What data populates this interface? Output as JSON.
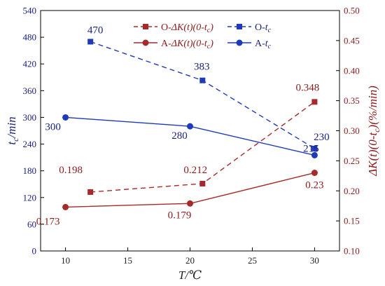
{
  "chart_data": {
    "type": "line",
    "xlabel": "T/℃",
    "ylabel_left": "t_c/min",
    "ylabel_right": "ΔK(t)(0-t_c)(%/min)",
    "xlim": [
      8,
      32
    ],
    "x_ticks": [
      "10",
      "15",
      "20",
      "25",
      "30"
    ],
    "ylim_left": [
      0,
      540
    ],
    "y_ticks_left": [
      "0",
      "60",
      "120",
      "180",
      "240",
      "300",
      "360",
      "420",
      "480",
      "540"
    ],
    "ylim_right": [
      0.1,
      0.5
    ],
    "y_ticks_right": [
      "0.10",
      "0.15",
      "0.20",
      "0.25",
      "0.30",
      "0.35",
      "0.40",
      "0.45",
      "0.50"
    ],
    "legend_placement": "top-right",
    "legend": [
      {
        "text": "O-ΔK(t)(0-t_c)",
        "series": "O-dK"
      },
      {
        "text": "O-t_c",
        "series": "O-tc"
      },
      {
        "text": "A-ΔK(t)(0-t_c)",
        "series": "A-dK"
      },
      {
        "text": "A-t_c",
        "series": "A-tc"
      }
    ],
    "series": [
      {
        "key": "O-dK",
        "axis": "right",
        "color": "#a52a2a",
        "dashed": true,
        "marker": "square",
        "x": [
          12,
          21,
          30
        ],
        "values": [
          0.198,
          0.212,
          0.348
        ],
        "labels": [
          "0.198",
          "0.212",
          "0.348"
        ]
      },
      {
        "key": "O-tc",
        "axis": "left",
        "color": "#1e3ab8",
        "dashed": true,
        "marker": "square",
        "x": [
          12,
          21,
          30
        ],
        "values": [
          470,
          383,
          230
        ],
        "labels": [
          "470",
          "383",
          "230"
        ]
      },
      {
        "key": "A-dK",
        "axis": "right",
        "color": "#a52a2a",
        "dashed": false,
        "marker": "circle",
        "x": [
          10,
          20,
          30
        ],
        "values": [
          0.173,
          0.179,
          0.23
        ],
        "labels": [
          "0.173",
          "0.179",
          "0.23"
        ]
      },
      {
        "key": "A-tc",
        "axis": "left",
        "color": "#1e3ab8",
        "dashed": false,
        "marker": "circle",
        "x": [
          10,
          20,
          30
        ],
        "values": [
          300,
          280,
          215
        ],
        "labels": [
          "300",
          "280",
          "215"
        ]
      }
    ]
  }
}
